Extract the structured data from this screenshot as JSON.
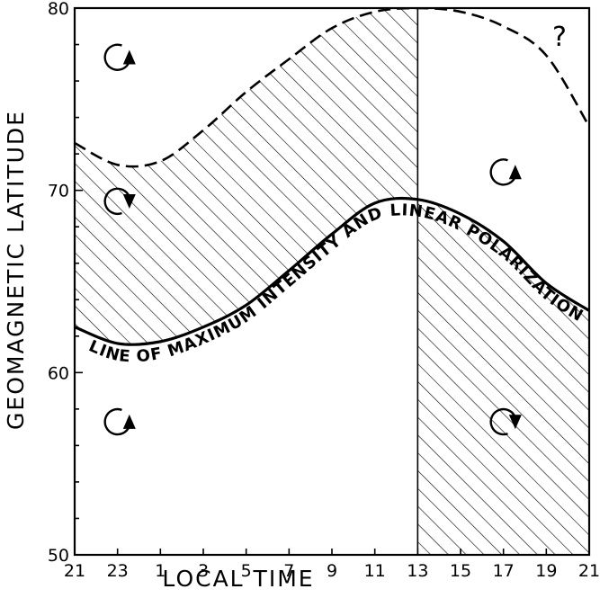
{
  "chart_data": {
    "type": "line",
    "xlabel": "LOCAL TIME",
    "ylabel": "GEOMAGNETIC LATITUDE",
    "x_tick_labels": [
      "21",
      "23",
      "1",
      "3",
      "5",
      "7",
      "9",
      "11",
      "13",
      "15",
      "17",
      "19",
      "21"
    ],
    "y_tick_labels": [
      "50",
      "60",
      "70",
      "80"
    ],
    "ylim": [
      50,
      80
    ],
    "x_hours_from_21": [
      0,
      24
    ],
    "grid": false,
    "series": [
      {
        "style": "dashed",
        "x": [
          "21",
          "23",
          "1",
          "3",
          "5",
          "7",
          "9",
          "11",
          "13",
          "15",
          "17",
          "19",
          "21"
        ],
        "y": [
          72.6,
          71.4,
          71.6,
          73.3,
          75.4,
          77.2,
          78.9,
          79.8,
          80.0,
          79.8,
          79.0,
          77.4,
          73.5
        ]
      },
      {
        "name": "LINE OF MAXIMUM INTENSITY AND LINEAR POLARIZATION",
        "style": "solid",
        "x": [
          "21",
          "23",
          "1",
          "3",
          "5",
          "7",
          "9",
          "11",
          "13",
          "15",
          "17",
          "19",
          "21"
        ],
        "y": [
          62.5,
          61.6,
          61.7,
          62.5,
          63.7,
          65.6,
          67.6,
          69.3,
          69.5,
          68.7,
          67.2,
          64.9,
          63.4
        ]
      }
    ],
    "divider_local_time": "13",
    "annotations": {
      "question_mark": "?",
      "curve_label": "LINE OF MAXIMUM INTENSITY AND LINEAR POLARIZATION"
    },
    "rotation_markers": [
      {
        "x_hours_from_21": 2.0,
        "latitude": 77.3,
        "direction": "counterclockwise"
      },
      {
        "x_hours_from_21": 2.0,
        "latitude": 69.4,
        "direction": "clockwise"
      },
      {
        "x_hours_from_21": 2.0,
        "latitude": 57.3,
        "direction": "counterclockwise"
      },
      {
        "x_hours_from_21": 20.0,
        "latitude": 71.0,
        "direction": "counterclockwise"
      },
      {
        "x_hours_from_21": 20.0,
        "latitude": 57.3,
        "direction": "clockwise"
      }
    ],
    "hatched_regions": [
      "between dashed and solid curve, 21–13 LT",
      "below solid curve, 13–21 LT"
    ]
  }
}
